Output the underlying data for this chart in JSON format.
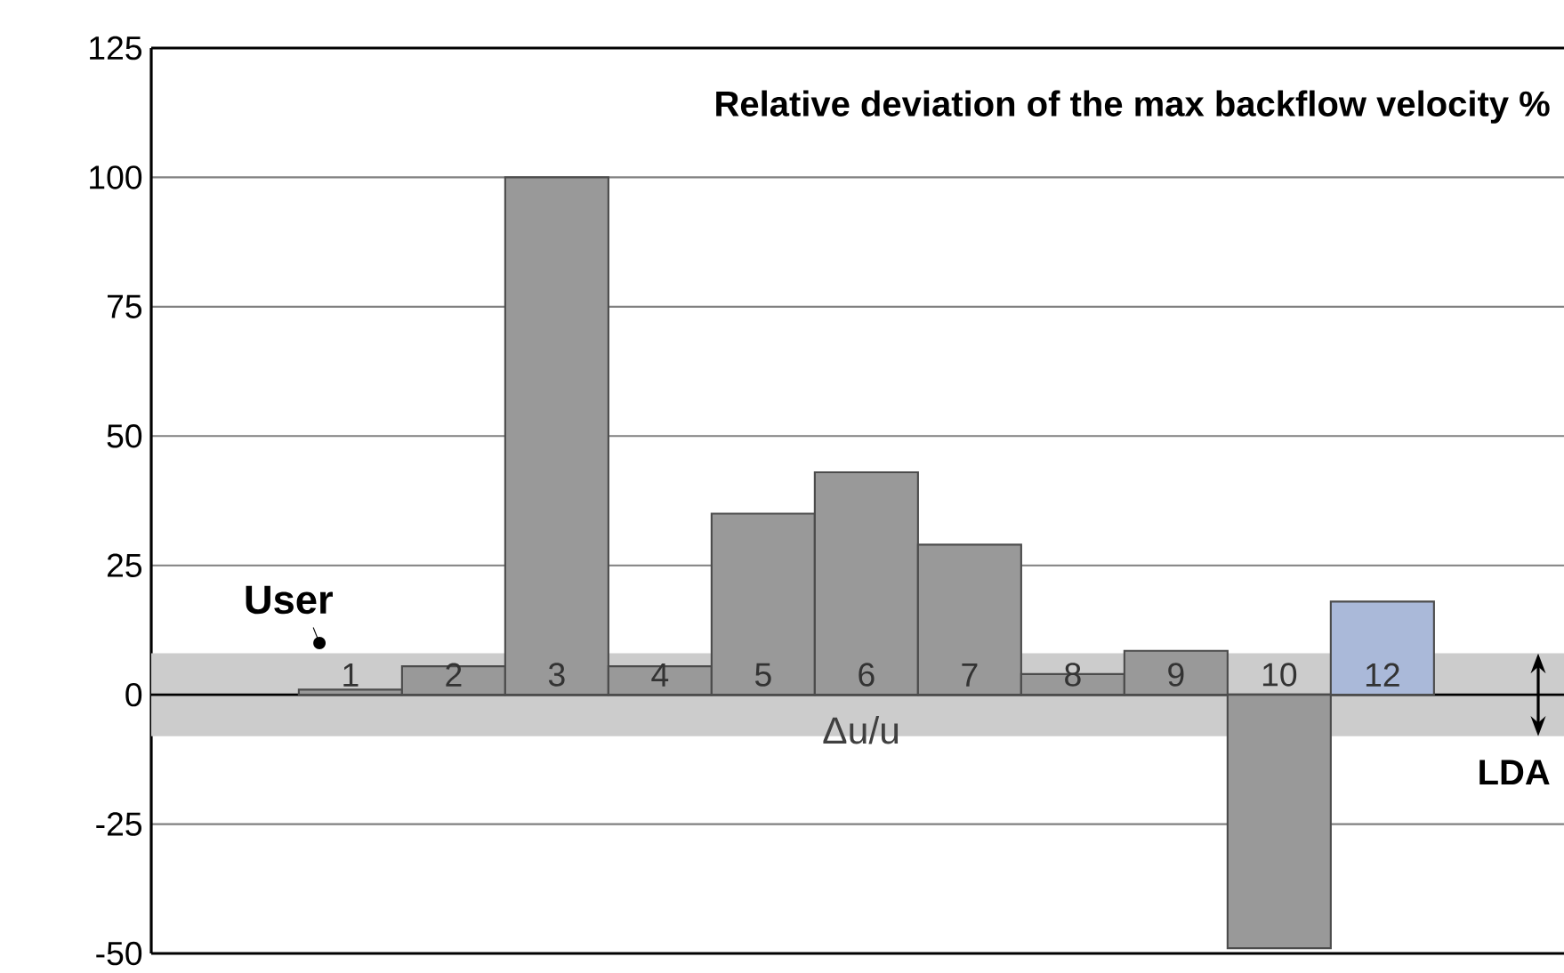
{
  "chart_data": {
    "type": "bar",
    "title": "Relative deviation of the max backflow velocity %",
    "categories": [
      "1",
      "2",
      "3",
      "4",
      "5",
      "6",
      "7",
      "8",
      "9",
      "10",
      "12"
    ],
    "values": [
      1,
      5.5,
      100,
      5.5,
      35,
      43,
      29,
      4,
      8.5,
      -49,
      18
    ],
    "colors": [
      "#999999",
      "#999999",
      "#999999",
      "#999999",
      "#999999",
      "#999999",
      "#999999",
      "#999999",
      "#999999",
      "#999999",
      "#aab9d9"
    ],
    "ylim": [
      -50,
      125
    ],
    "yticks": [
      -50,
      -25,
      0,
      25,
      50,
      75,
      100,
      125
    ],
    "grid": "y",
    "bands": [
      {
        "axis": "y",
        "from": -8,
        "to": 8,
        "label": "LDA",
        "color": "#cccccc"
      }
    ],
    "annotations": [
      {
        "text": "User",
        "x": "1",
        "y": 1
      },
      "Δu/u"
    ]
  }
}
